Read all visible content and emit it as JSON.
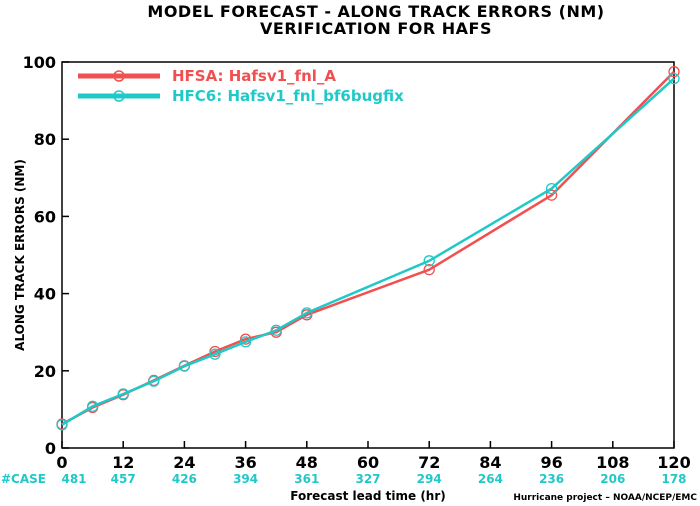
{
  "chart_data": {
    "type": "line",
    "title": "MODEL FORECAST - ALONG TRACK ERRORS (NM)",
    "subtitle": "VERIFICATION FOR HAFS",
    "xlabel": "Forecast lead time (hr)",
    "ylabel": "ALONG TRACK ERRORS (NM)",
    "xlim": [
      0,
      120
    ],
    "ylim": [
      0,
      100
    ],
    "x_ticks": [
      0,
      12,
      24,
      36,
      48,
      60,
      72,
      84,
      96,
      108,
      120
    ],
    "y_ticks": [
      0,
      20,
      40,
      60,
      80,
      100
    ],
    "grid": false,
    "legend_position": "top-left",
    "series": [
      {
        "name": "HFSA: Hafsv1_fnl_A",
        "color": "#f05050",
        "x": [
          0,
          6,
          12,
          18,
          24,
          30,
          36,
          42,
          48,
          72,
          96,
          120
        ],
        "values": [
          6.2,
          10.5,
          13.8,
          17.5,
          21.3,
          25.0,
          28.2,
          30.0,
          34.5,
          46.2,
          65.5,
          97.5
        ]
      },
      {
        "name": "HFC6: Hafsv1_fnl_bf6bugfix",
        "color": "#20c8c8",
        "x": [
          0,
          6,
          12,
          18,
          24,
          30,
          36,
          42,
          48,
          72,
          96,
          120
        ],
        "values": [
          6.0,
          10.8,
          14.0,
          17.3,
          21.2,
          24.3,
          27.5,
          30.5,
          35.0,
          48.5,
          67.2,
          95.7
        ]
      }
    ],
    "case_label": "#CASE",
    "case_x": [
      0,
      12,
      24,
      36,
      48,
      60,
      72,
      84,
      96,
      108,
      120
    ],
    "case_counts": [
      "481",
      "457",
      "426",
      "394",
      "361",
      "327",
      "294",
      "264",
      "236",
      "206",
      "178"
    ],
    "case_color": "#20c8c8",
    "credit": "Hurricane project – NOAA/NCEP/EMC"
  }
}
